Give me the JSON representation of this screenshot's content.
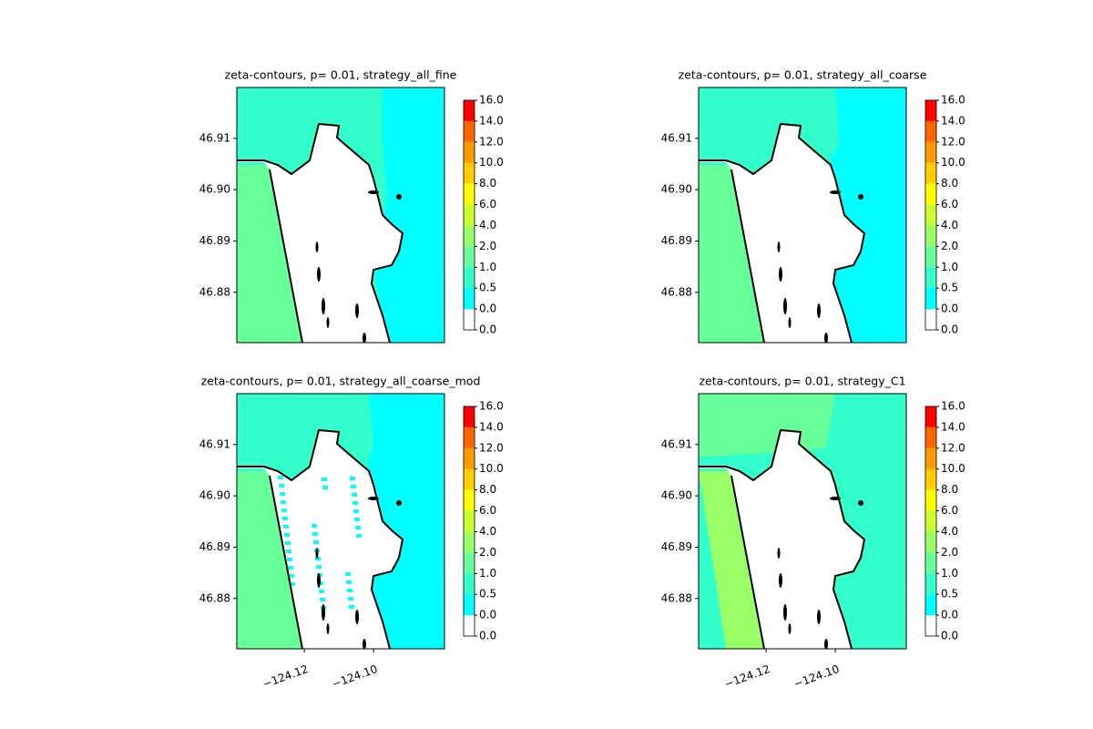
{
  "chart_data": [
    {
      "type": "contour",
      "title": "zeta-contours, p= 0.01, strategy_all_fine",
      "xlim": [
        -124.1395,
        -124.0795
      ],
      "ylim": [
        46.8702,
        46.9199
      ],
      "yticks": [
        {
          "value": 46.88,
          "label": "46.88"
        },
        {
          "value": 46.89,
          "label": "46.89"
        },
        {
          "value": 46.9,
          "label": "46.90"
        },
        {
          "value": 46.91,
          "label": "46.91"
        }
      ],
      "xticks": [],
      "levels": [
        {
          "value": 0,
          "label": "0.0"
        },
        {
          "value": 0,
          "label": "0.0"
        },
        {
          "value": 0.5,
          "label": "0.5"
        },
        {
          "value": 1,
          "label": "1.0"
        },
        {
          "value": 2,
          "label": "2.0"
        },
        {
          "value": 4,
          "label": "4.0"
        },
        {
          "value": 6,
          "label": "6.0"
        },
        {
          "value": 8,
          "label": "8.0"
        },
        {
          "value": 10,
          "label": "10.0"
        },
        {
          "value": 12,
          "label": "12.0"
        },
        {
          "value": 14,
          "label": "14.0"
        },
        {
          "value": 16,
          "label": "16.0"
        }
      ],
      "colors": [
        "#ffffff",
        "#00ffff",
        "#33ffcc",
        "#66ff99",
        "#99ff66",
        "#ccff33",
        "#ffff00",
        "#ffcc00",
        "#ff9900",
        "#ff6600",
        "#ff0000"
      ]
    },
    {
      "type": "contour",
      "title": "zeta-contours, p= 0.01, strategy_all_coarse",
      "xlim": [
        -124.1395,
        -124.0795
      ],
      "ylim": [
        46.8702,
        46.9199
      ],
      "yticks": [
        {
          "value": 46.88,
          "label": "46.88"
        },
        {
          "value": 46.89,
          "label": "46.89"
        },
        {
          "value": 46.9,
          "label": "46.90"
        },
        {
          "value": 46.91,
          "label": "46.91"
        }
      ],
      "xticks": [],
      "levels": [
        {
          "value": 0,
          "label": "0.0"
        },
        {
          "value": 0,
          "label": "0.0"
        },
        {
          "value": 0.5,
          "label": "0.5"
        },
        {
          "value": 1,
          "label": "1.0"
        },
        {
          "value": 2,
          "label": "2.0"
        },
        {
          "value": 4,
          "label": "4.0"
        },
        {
          "value": 6,
          "label": "6.0"
        },
        {
          "value": 8,
          "label": "8.0"
        },
        {
          "value": 10,
          "label": "10.0"
        },
        {
          "value": 12,
          "label": "12.0"
        },
        {
          "value": 14,
          "label": "14.0"
        },
        {
          "value": 16,
          "label": "16.0"
        }
      ],
      "colors": [
        "#ffffff",
        "#00ffff",
        "#33ffcc",
        "#66ff99",
        "#99ff66",
        "#ccff33",
        "#ffff00",
        "#ffcc00",
        "#ff9900",
        "#ff6600",
        "#ff0000"
      ]
    },
    {
      "type": "contour",
      "title": "zeta-contours, p= 0.01, strategy_all_coarse_mod",
      "xlim": [
        -124.1395,
        -124.0795
      ],
      "ylim": [
        46.8702,
        46.9199
      ],
      "yticks": [
        {
          "value": 46.88,
          "label": "46.88"
        },
        {
          "value": 46.89,
          "label": "46.89"
        },
        {
          "value": 46.9,
          "label": "46.90"
        },
        {
          "value": 46.91,
          "label": "46.91"
        }
      ],
      "xticks": [
        {
          "value": -124.12,
          "label": "−124.12"
        },
        {
          "value": -124.1,
          "label": "−124.10"
        }
      ],
      "levels": [
        {
          "value": 0,
          "label": "0.0"
        },
        {
          "value": 0,
          "label": "0.0"
        },
        {
          "value": 0.5,
          "label": "0.5"
        },
        {
          "value": 1,
          "label": "1.0"
        },
        {
          "value": 2,
          "label": "2.0"
        },
        {
          "value": 4,
          "label": "4.0"
        },
        {
          "value": 6,
          "label": "6.0"
        },
        {
          "value": 8,
          "label": "8.0"
        },
        {
          "value": 10,
          "label": "10.0"
        },
        {
          "value": 12,
          "label": "12.0"
        },
        {
          "value": 14,
          "label": "14.0"
        },
        {
          "value": 16,
          "label": "16.0"
        }
      ],
      "colors": [
        "#ffffff",
        "#00ffff",
        "#33ffcc",
        "#66ff99",
        "#99ff66",
        "#ccff33",
        "#ffff00",
        "#ffcc00",
        "#ff9900",
        "#ff6600",
        "#ff0000"
      ]
    },
    {
      "type": "contour",
      "title": "zeta-contours, p= 0.01, strategy_C1",
      "xlim": [
        -124.1395,
        -124.0795
      ],
      "ylim": [
        46.8702,
        46.9199
      ],
      "yticks": [
        {
          "value": 46.88,
          "label": "46.88"
        },
        {
          "value": 46.89,
          "label": "46.89"
        },
        {
          "value": 46.9,
          "label": "46.90"
        },
        {
          "value": 46.91,
          "label": "46.91"
        }
      ],
      "xticks": [
        {
          "value": -124.12,
          "label": "−124.12"
        },
        {
          "value": -124.1,
          "label": "−124.10"
        }
      ],
      "levels": [
        {
          "value": 0,
          "label": "0.0"
        },
        {
          "value": 0,
          "label": "0.0"
        },
        {
          "value": 0.5,
          "label": "0.5"
        },
        {
          "value": 1,
          "label": "1.0"
        },
        {
          "value": 2,
          "label": "2.0"
        },
        {
          "value": 4,
          "label": "4.0"
        },
        {
          "value": 6,
          "label": "6.0"
        },
        {
          "value": 8,
          "label": "8.0"
        },
        {
          "value": 10,
          "label": "10.0"
        },
        {
          "value": 12,
          "label": "12.0"
        },
        {
          "value": 14,
          "label": "14.0"
        },
        {
          "value": 16,
          "label": "16.0"
        }
      ],
      "colors": [
        "#ffffff",
        "#00ffff",
        "#33ffcc",
        "#66ff99",
        "#99ff66",
        "#ccff33",
        "#ffff00",
        "#ffcc00",
        "#ff9900",
        "#ff6600",
        "#ff0000"
      ]
    }
  ]
}
